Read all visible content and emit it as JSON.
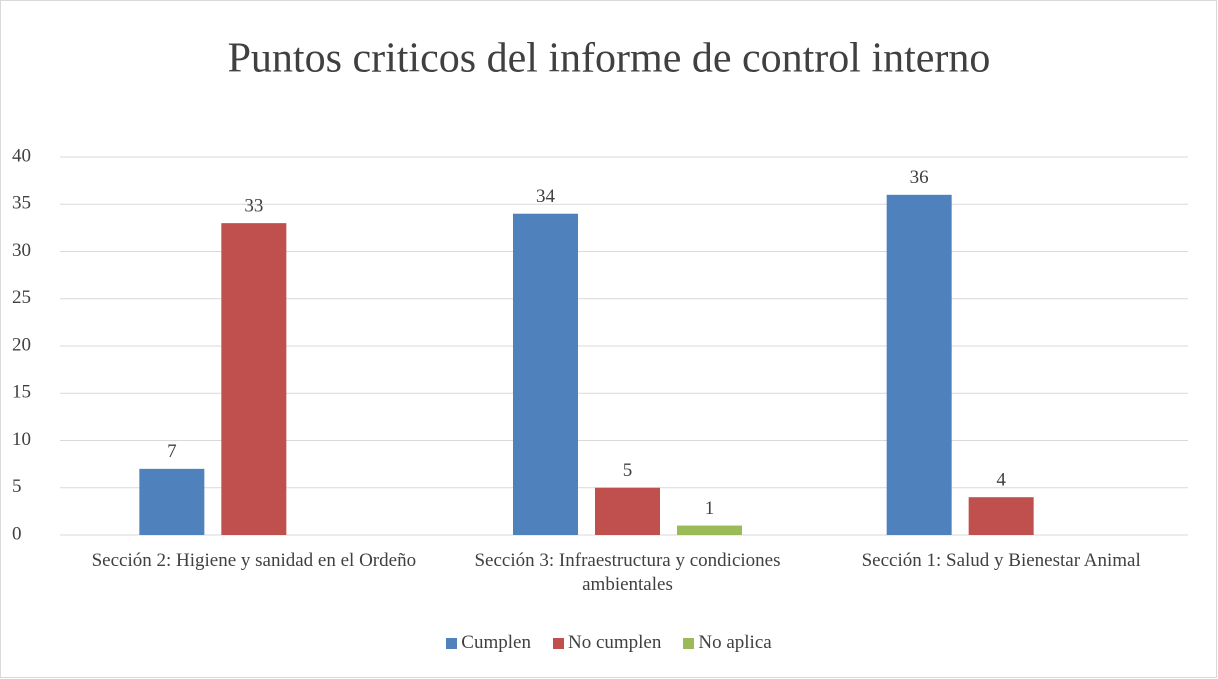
{
  "chart_data": {
    "type": "bar",
    "title": "Puntos criticos del informe de control interno",
    "categories": [
      "Sección 2: Higiene y sanidad en el Ordeño",
      "Sección 3: Infraestructura y condiciones ambientales",
      "Sección 1: Salud y Bienestar Animal"
    ],
    "series": [
      {
        "name": "Cumplen",
        "color": "#4f81bd",
        "values": [
          7,
          34,
          36
        ]
      },
      {
        "name": "No cumplen",
        "color": "#c0504d",
        "values": [
          33,
          5,
          4
        ]
      },
      {
        "name": "No aplica",
        "color": "#9bbb59",
        "values": [
          null,
          1,
          null
        ]
      }
    ],
    "ylim": [
      0,
      40
    ],
    "yticks": [
      0,
      5,
      10,
      15,
      20,
      25,
      30,
      35,
      40
    ],
    "grid": true,
    "legend": "bottom"
  }
}
